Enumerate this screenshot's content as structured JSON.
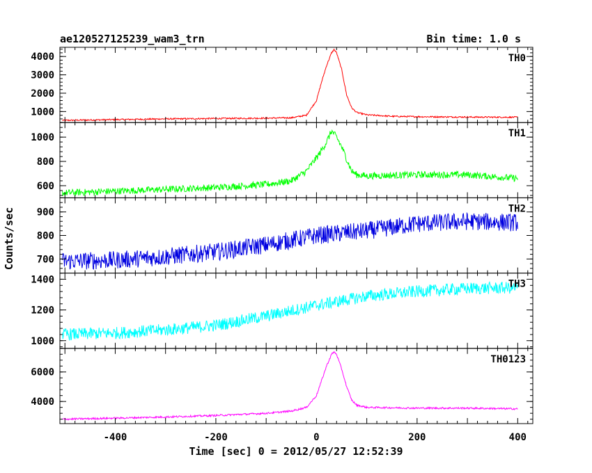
{
  "chart_data": {
    "type": "line",
    "title_left": "ae120527125239_wam3_trn",
    "title_right": "Bin time: 1.0 s",
    "xlabel": "Time [sec] 0 = 2012/05/27 12:52:39",
    "ylabel": "Counts/sec",
    "xlim": [
      -510,
      430
    ],
    "x_ticks": [
      -400,
      -200,
      0,
      200,
      400
    ],
    "grid": false,
    "panels": [
      {
        "name": "TH0",
        "color": "#ff0000",
        "ylim": [
          400,
          4500
        ],
        "y_ticks": [
          1000,
          2000,
          3000,
          4000
        ],
        "x": [
          -505,
          -400,
          -300,
          -200,
          -100,
          -50,
          -20,
          0,
          10,
          20,
          30,
          35,
          40,
          50,
          60,
          70,
          80,
          100,
          150,
          200,
          300,
          400
        ],
        "y": [
          520,
          560,
          600,
          620,
          640,
          660,
          800,
          1600,
          2600,
          3500,
          4200,
          4380,
          4200,
          3300,
          1900,
          1200,
          950,
          820,
          740,
          720,
          700,
          690
        ],
        "noise": 40
      },
      {
        "name": "TH1",
        "color": "#00ff00",
        "ylim": [
          500,
          1120
        ],
        "y_ticks": [
          600,
          800,
          1000
        ],
        "x": [
          -505,
          -400,
          -300,
          -200,
          -100,
          -50,
          -20,
          0,
          10,
          20,
          30,
          40,
          50,
          60,
          70,
          80,
          100,
          200,
          300,
          400
        ],
        "y": [
          540,
          555,
          570,
          585,
          610,
          640,
          720,
          830,
          890,
          960,
          1050,
          1000,
          920,
          820,
          720,
          690,
          680,
          690,
          690,
          660
        ],
        "noise": 28
      },
      {
        "name": "TH2",
        "color": "#0000e0",
        "ylim": [
          640,
          960
        ],
        "y_ticks": [
          700,
          800,
          900
        ],
        "x": [
          -505,
          -400,
          -300,
          -200,
          -100,
          0,
          100,
          200,
          300,
          400
        ],
        "y": [
          690,
          695,
          710,
          730,
          760,
          800,
          820,
          850,
          860,
          855
        ],
        "noise": 38
      },
      {
        "name": "TH3",
        "color": "#00ffff",
        "ylim": [
          950,
          1440
        ],
        "y_ticks": [
          1000,
          1200,
          1400
        ],
        "x": [
          -505,
          -400,
          -300,
          -200,
          -100,
          0,
          100,
          200,
          300,
          400
        ],
        "y": [
          1040,
          1050,
          1070,
          1100,
          1160,
          1230,
          1290,
          1320,
          1340,
          1345
        ],
        "noise": 40
      },
      {
        "name": "TH0123",
        "color": "#ff00ff",
        "ylim": [
          2500,
          7600
        ],
        "y_ticks": [
          4000,
          6000
        ],
        "x": [
          -505,
          -400,
          -300,
          -200,
          -100,
          -50,
          -20,
          0,
          10,
          20,
          30,
          35,
          40,
          50,
          60,
          70,
          80,
          100,
          200,
          300,
          400
        ],
        "y": [
          2800,
          2870,
          2950,
          3050,
          3200,
          3350,
          3600,
          4400,
          5400,
          6400,
          7200,
          7350,
          7200,
          6200,
          5000,
          4100,
          3750,
          3600,
          3550,
          3550,
          3500
        ],
        "noise": 60
      }
    ]
  }
}
